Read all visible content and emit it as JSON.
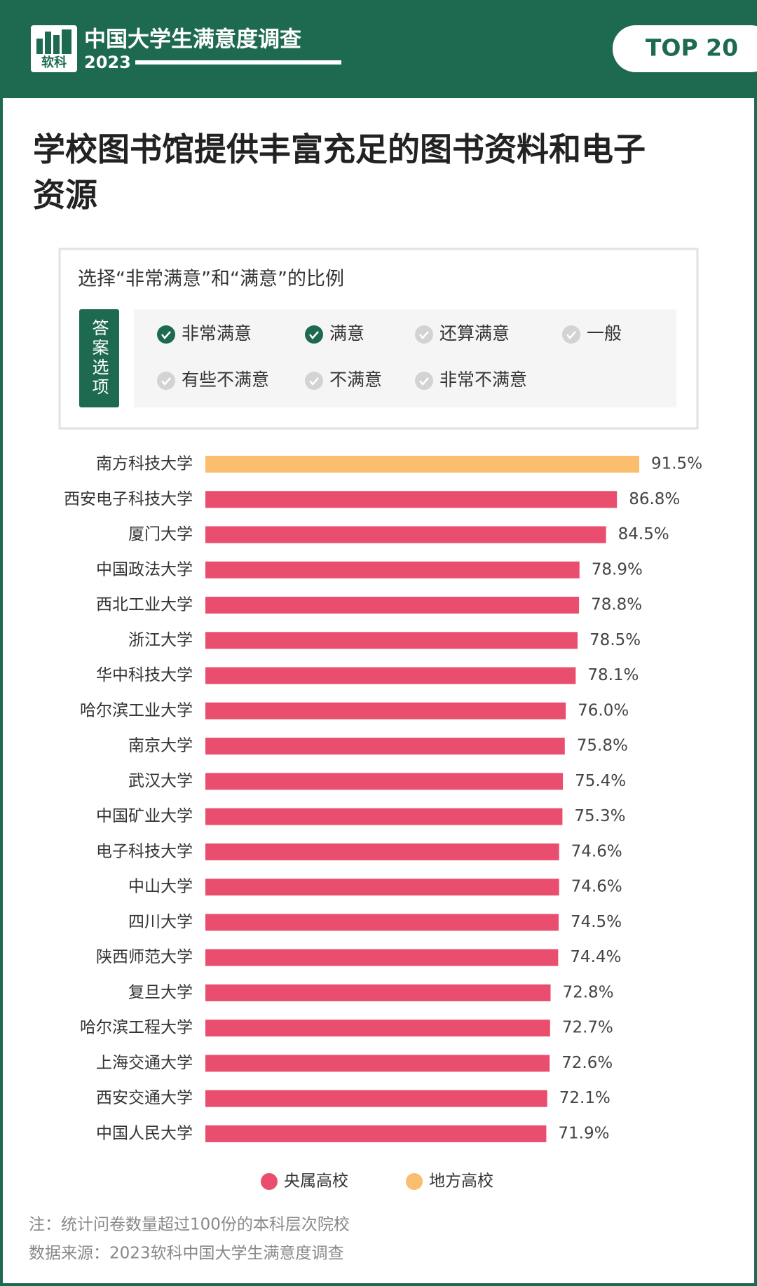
{
  "header": {
    "brand": "中国大学生满意度调查",
    "logo_text": "软科",
    "year": "2023",
    "badge": "TOP 20"
  },
  "question": {
    "title": "学校图书馆提供丰富充足的图书资料和电子资源",
    "prompt": "选择“非常满意”和“满意”的比例",
    "options_label": "答案选项",
    "options": [
      {
        "label": "非常满意",
        "checked": true
      },
      {
        "label": "满意",
        "checked": true
      },
      {
        "label": "还算满意",
        "checked": false
      },
      {
        "label": "一般",
        "checked": false
      },
      {
        "label": "有些不满意",
        "checked": false
      },
      {
        "label": "不满意",
        "checked": false
      },
      {
        "label": "非常不满意",
        "checked": false
      }
    ]
  },
  "chart_data": {
    "type": "hbar",
    "categories": [
      "南方科技大学",
      "西安电子科技大学",
      "厦门大学",
      "中国政法大学",
      "西北工业大学",
      "浙江大学",
      "华中科技大学",
      "哈尔滨工业大学",
      "南京大学",
      "武汉大学",
      "中国矿业大学",
      "电子科技大学",
      "中山大学",
      "四川大学",
      "陕西师范大学",
      "复旦大学",
      "哈尔滨工程大学",
      "上海交通大学",
      "西安交通大学",
      "中国人民大学"
    ],
    "series": [
      {
        "name": "央属高校",
        "color": "#e94e6e",
        "values": [
          null,
          86.8,
          84.5,
          78.9,
          78.8,
          78.5,
          78.1,
          76.0,
          75.8,
          75.4,
          75.3,
          74.6,
          74.6,
          74.5,
          74.4,
          72.8,
          72.7,
          72.6,
          72.1,
          71.9
        ],
        "value_labels": [
          null,
          "86.8%",
          "84.5%",
          "78.9%",
          "78.8%",
          "78.5%",
          "78.1%",
          "76.0%",
          "75.8%",
          "75.4%",
          "75.3%",
          "74.6%",
          "74.6%",
          "74.5%",
          "74.4%",
          "72.8%",
          "72.7%",
          "72.6%",
          "72.1%",
          "71.9%"
        ]
      },
      {
        "name": "地方高校",
        "color": "#fbbd6e",
        "values": [
          91.5,
          null,
          null,
          null,
          null,
          null,
          null,
          null,
          null,
          null,
          null,
          null,
          null,
          null,
          null,
          null,
          null,
          null,
          null,
          null
        ],
        "value_labels": [
          "91.5%",
          null,
          null,
          null,
          null,
          null,
          null,
          null,
          null,
          null,
          null,
          null,
          null,
          null,
          null,
          null,
          null,
          null,
          null,
          null
        ]
      }
    ]
  },
  "footer": {
    "note": "注：统计问卷数量超过100份的本科层次院校",
    "source": "数据来源：2023软科中国大学生满意度调查"
  }
}
